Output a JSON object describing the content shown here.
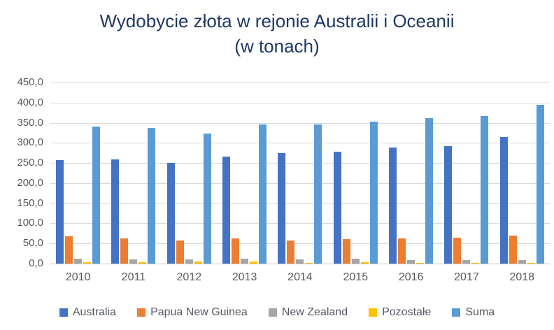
{
  "chart_data": {
    "type": "bar",
    "title": "Wydobycie złota w rejonie Australii i Oceanii",
    "subtitle": "(w tonach)",
    "categories": [
      "2010",
      "2011",
      "2012",
      "2013",
      "2014",
      "2015",
      "2016",
      "2017",
      "2018"
    ],
    "series": [
      {
        "name": "Australia",
        "color": "#4472C4",
        "values": [
          257,
          259,
          251,
          266,
          274,
          278,
          288,
          292,
          315
        ]
      },
      {
        "name": "Papua New Guinea",
        "color": "#ED7D31",
        "values": [
          68,
          63,
          57,
          63,
          58,
          60,
          62,
          64,
          69
        ]
      },
      {
        "name": "New Zealand",
        "color": "#A5A5A5",
        "values": [
          12,
          11,
          10,
          12,
          11,
          12,
          9,
          9,
          8
        ]
      },
      {
        "name": "Pozostałe",
        "color": "#FFC000",
        "values": [
          3,
          4,
          5,
          5,
          2,
          3,
          2,
          2,
          2
        ]
      },
      {
        "name": "Suma",
        "color": "#5B9BD5",
        "values": [
          340,
          337,
          323,
          346,
          345,
          353,
          361,
          367,
          394
        ]
      }
    ],
    "ylim": [
      0,
      450
    ],
    "ytick_step": 50,
    "ytick_labels": [
      "450,0",
      "400,0",
      "350,0",
      "300,0",
      "250,0",
      "200,0",
      "150,0",
      "100,0",
      "50,0",
      "0,0"
    ],
    "grid": true,
    "legend_position": "bottom",
    "styles": {
      "title_color": "#1F3864",
      "axis_label_color": "#595959",
      "gridline_color": "#d9d9d9"
    }
  }
}
